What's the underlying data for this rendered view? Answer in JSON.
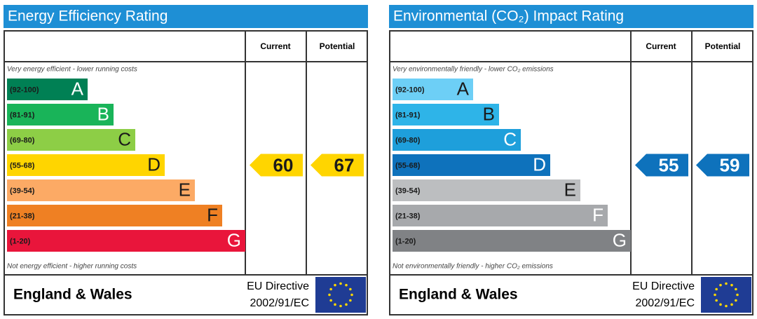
{
  "panels": [
    {
      "title": "Energy Efficiency Rating",
      "headers": [
        "Current",
        "Potential"
      ],
      "top_note": "Very energy efficient - lower running costs",
      "bottom_note": "Not energy efficient - higher running costs",
      "bands": [
        {
          "range": "(92-100)",
          "letter": "A",
          "color": "#008054",
          "text_color": "#ffffff"
        },
        {
          "range": "(81-91)",
          "letter": "B",
          "color": "#19b459",
          "text_color": "#ffffff"
        },
        {
          "range": "(69-80)",
          "letter": "C",
          "color": "#8dce46",
          "text_color": "#1a1a1a"
        },
        {
          "range": "(55-68)",
          "letter": "D",
          "color": "#ffd500",
          "text_color": "#1a1a1a"
        },
        {
          "range": "(39-54)",
          "letter": "E",
          "color": "#fcaa65",
          "text_color": "#1a1a1a"
        },
        {
          "range": "(21-38)",
          "letter": "F",
          "color": "#ef8023",
          "text_color": "#1a1a1a"
        },
        {
          "range": "(1-20)",
          "letter": "G",
          "color": "#e9153b",
          "text_color": "#ffffff"
        }
      ],
      "current": "60",
      "potential": "67",
      "region": "England & Wales",
      "directive": [
        "EU Directive",
        "2002/91/EC"
      ]
    },
    {
      "title": "Environmental (CO₂) Impact Rating",
      "headers": [
        "Current",
        "Potential"
      ],
      "top_note": "Very environmentally friendly - lower CO₂ emissions",
      "bottom_note": "Not environmentally friendly - higher CO₂ emissions",
      "bands": [
        {
          "range": "(92-100)",
          "letter": "A",
          "color": "#6dcff6",
          "text_color": "#1a1a1a"
        },
        {
          "range": "(81-91)",
          "letter": "B",
          "color": "#2eb4e8",
          "text_color": "#1a1a1a"
        },
        {
          "range": "(69-80)",
          "letter": "C",
          "color": "#1e9fdb",
          "text_color": "#ffffff"
        },
        {
          "range": "(55-68)",
          "letter": "D",
          "color": "#0e72bc",
          "text_color": "#ffffff"
        },
        {
          "range": "(39-54)",
          "letter": "E",
          "color": "#bcbec0",
          "text_color": "#1a1a1a"
        },
        {
          "range": "(21-38)",
          "letter": "F",
          "color": "#a7a9ac",
          "text_color": "#ffffff"
        },
        {
          "range": "(1-20)",
          "letter": "G",
          "color": "#808285",
          "text_color": "#ffffff"
        }
      ],
      "current": "55",
      "potential": "59",
      "region": "England & Wales",
      "directive": [
        "EU Directive",
        "2002/91/EC"
      ]
    }
  ]
}
